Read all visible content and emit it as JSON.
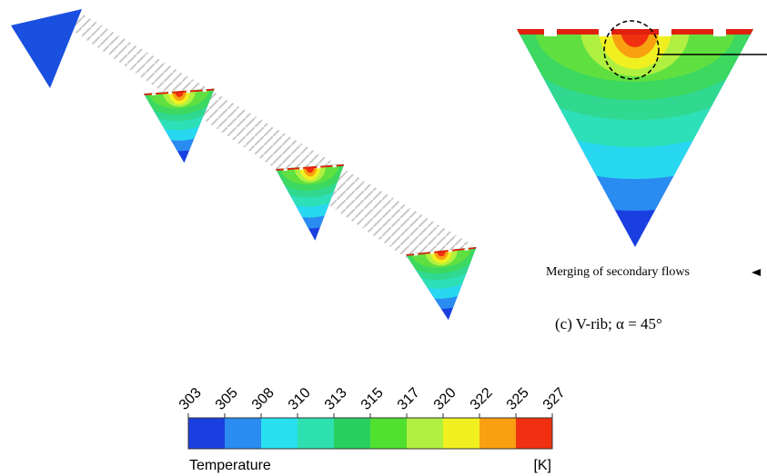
{
  "colorbar": {
    "ticks": [
      303,
      305,
      308,
      310,
      313,
      315,
      317,
      320,
      322,
      325,
      327
    ],
    "title": "Temperature",
    "unit": "[K]"
  },
  "annotation": "Merging of secondary flows",
  "caption": "(c) V-rib; α = 45°"
}
